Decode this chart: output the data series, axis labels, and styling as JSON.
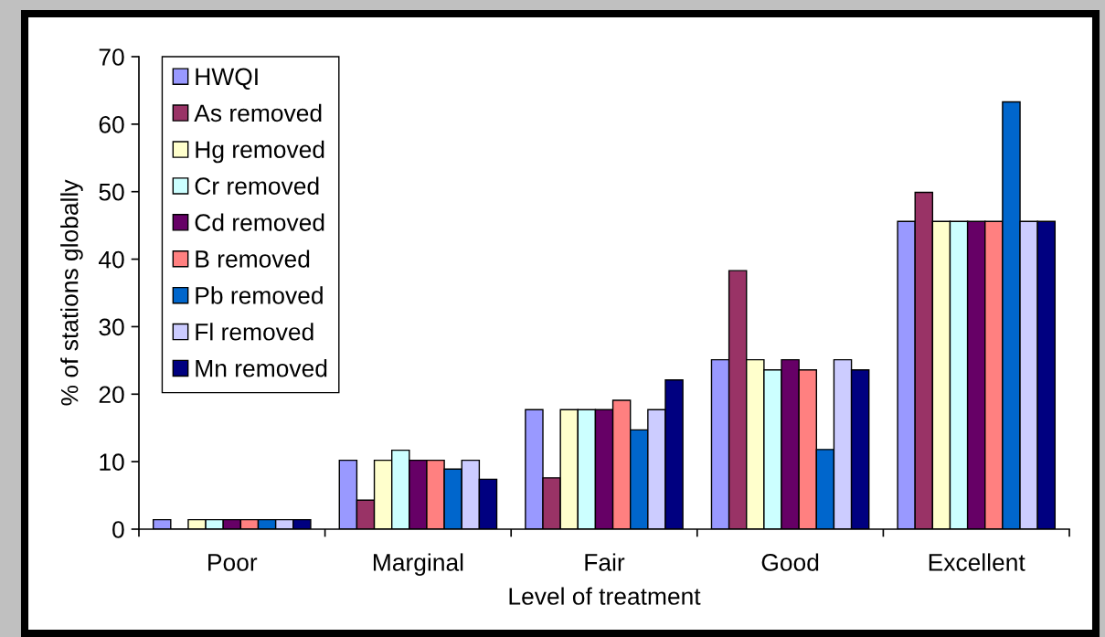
{
  "chart_data": {
    "type": "bar",
    "xlabel": "Level of treatment",
    "ylabel": "% of stations globally",
    "categories": [
      "Poor",
      "Marginal",
      "Fair",
      "Good",
      "Excellent"
    ],
    "series": [
      {
        "name": "HWQI",
        "color": "#9999ff",
        "values": [
          1.4,
          10.2,
          17.7,
          25.1,
          45.6
        ]
      },
      {
        "name": "As removed",
        "color": "#993366",
        "values": [
          0,
          4.3,
          7.6,
          38.3,
          49.9
        ]
      },
      {
        "name": "Hg removed",
        "color": "#ffffcc",
        "values": [
          1.4,
          10.2,
          17.7,
          25.1,
          45.6
        ]
      },
      {
        "name": "Cr removed",
        "color": "#ccffff",
        "values": [
          1.4,
          11.7,
          17.7,
          23.6,
          45.6
        ]
      },
      {
        "name": "Cd removed",
        "color": "#660066",
        "values": [
          1.4,
          10.2,
          17.7,
          25.1,
          45.6
        ]
      },
      {
        "name": "B removed",
        "color": "#ff8080",
        "values": [
          1.4,
          10.2,
          19.1,
          23.6,
          45.6
        ]
      },
      {
        "name": "Pb removed",
        "color": "#0066cc",
        "values": [
          1.4,
          8.9,
          14.7,
          11.8,
          63.3
        ]
      },
      {
        "name": "Fl removed",
        "color": "#ccccff",
        "values": [
          1.4,
          10.2,
          17.7,
          25.1,
          45.6
        ]
      },
      {
        "name": "Mn removed",
        "color": "#000080",
        "values": [
          1.4,
          7.4,
          22.1,
          23.6,
          45.6
        ]
      }
    ],
    "ylim": [
      0,
      70
    ],
    "yticks": [
      0,
      10,
      20,
      30,
      40,
      50,
      60,
      70
    ],
    "grid": false,
    "legend": "top left"
  }
}
